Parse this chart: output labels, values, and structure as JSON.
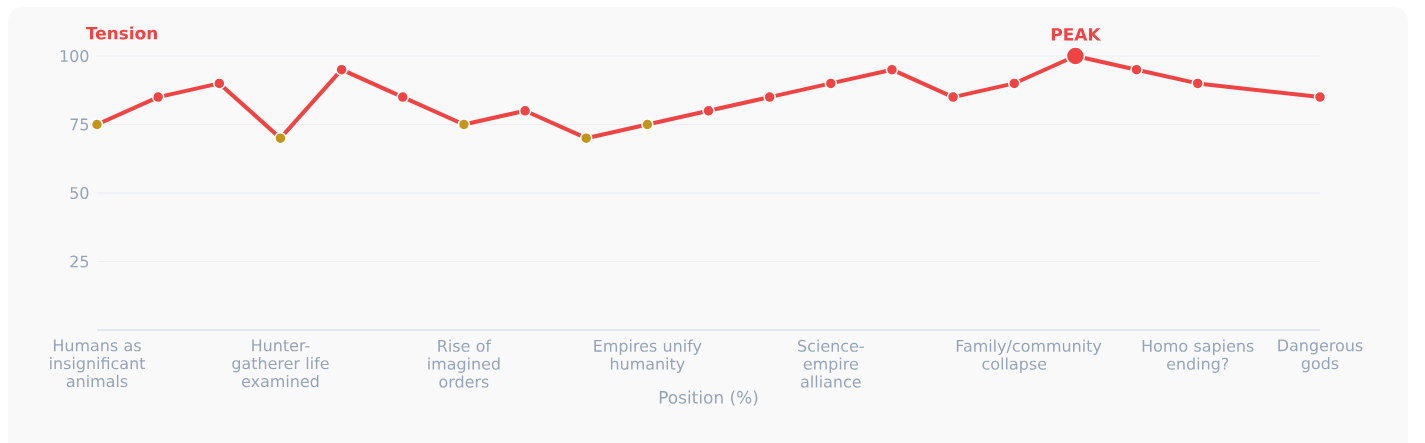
{
  "chart_data": {
    "type": "line",
    "ylabel": "Tension",
    "xlabel": "Position (%)",
    "categories": [
      "Humans as insignificant animals",
      null,
      null,
      "Hunter-gatherer life examined",
      null,
      null,
      "Rise of imagined orders",
      null,
      null,
      "Empires unify humanity",
      null,
      null,
      "Science-empire alliance",
      null,
      null,
      "Family/community collapse",
      null,
      null,
      "Homo sapiens ending?",
      null,
      "Dangerous gods"
    ],
    "series": [
      {
        "color": "#ef4444",
        "values": [
          75,
          85,
          90,
          70,
          95,
          85,
          75,
          80,
          70,
          75,
          80,
          85,
          90,
          95,
          85,
          90,
          100,
          95,
          90,
          null,
          85
        ],
        "colors": [
          "#c4951a",
          "#ef4444",
          "#ef4444",
          "#c4951a",
          "#ef4444",
          "#ef4444",
          "#c4951a",
          "#ef4444",
          "#c4951a",
          "#c4951a",
          "#ef4444",
          "#ef4444",
          "#ef4444",
          "#ef4444",
          "#ef4444",
          "#ef4444",
          "#ef4444",
          "#ef4444",
          "#ef4444",
          null,
          "#ef4444"
        ]
      }
    ],
    "ylim": [
      0,
      100
    ],
    "yticks": [
      25,
      50,
      75,
      100
    ],
    "annotations": [
      "PEAK"
    ],
    "grid": "y",
    "marker": "circle",
    "line_style": "solid"
  }
}
